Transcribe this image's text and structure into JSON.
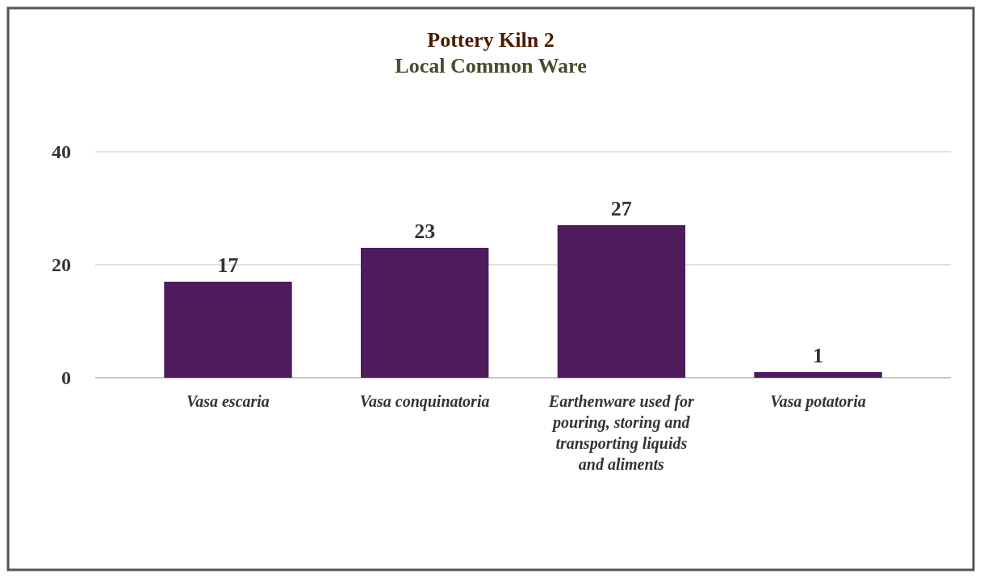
{
  "chart_data": {
    "type": "bar",
    "title": "Pottery Kiln 2",
    "subtitle": "Local Common Ware",
    "categories": [
      "Vasa escaria",
      "Vasa conquinatoria",
      "Earthenware used for pouring, storing and transporting liquids and aliments",
      "Vasa potatoria"
    ],
    "values": [
      17,
      23,
      27,
      1
    ],
    "color": "#4e1c5c",
    "ylim": [
      0,
      40
    ],
    "yticks": [
      0,
      20,
      40
    ],
    "grid": "y",
    "data_labels": true
  }
}
